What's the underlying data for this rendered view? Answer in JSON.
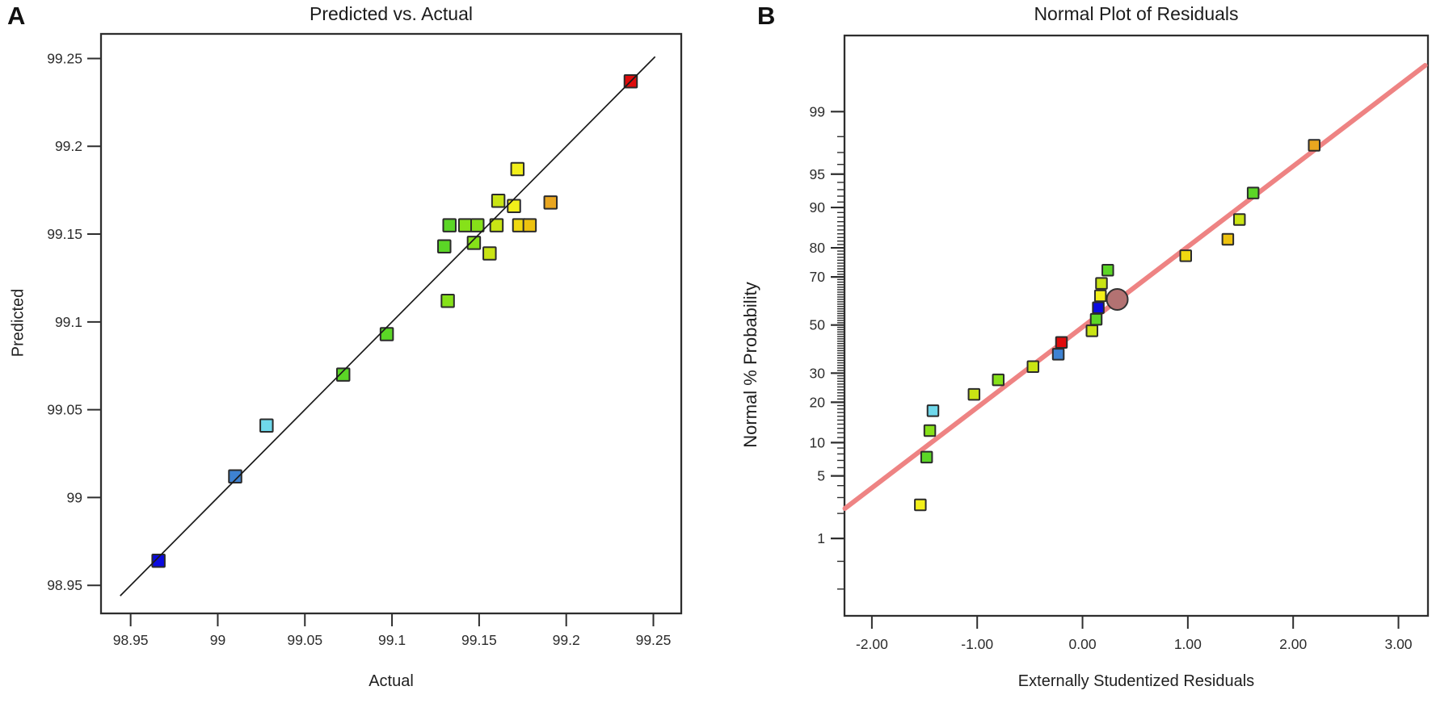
{
  "figure": {
    "background": "#ffffff",
    "panels": [
      {
        "label": "A"
      },
      {
        "label": "B"
      }
    ]
  },
  "palette": {
    "dark_blue": "#0a0ae0",
    "blue": "#3e82d2",
    "cyan": "#6fd8eb",
    "green": "#5bd626",
    "green_yellow": "#86e119",
    "yellow_green": "#c9e414",
    "yellow": "#f2ef1a",
    "yellow_deep": "#efd911",
    "amber": "#edc20f",
    "orange": "#e9a61f",
    "red": "#df0b0b",
    "marker_stroke": "#2b2b2b",
    "axis_color": "#2e2e2e",
    "fit_line_a": "#1a1a1a",
    "fit_line_b": "#ee8383",
    "overlap_circle": "#b37272"
  },
  "chart_data": [
    {
      "type": "scatter",
      "panel": "A",
      "title": "Predicted vs. Actual",
      "xlabel": "Actual",
      "ylabel": "Predicted",
      "marker": "square",
      "grid": false,
      "xlim": [
        98.933,
        99.266
      ],
      "ylim": [
        98.934,
        99.264
      ],
      "x_ticks": [
        98.95,
        99,
        99.05,
        99.1,
        99.15,
        99.2,
        99.25
      ],
      "x_tick_labels": [
        "98.95",
        "99",
        "99.05",
        "99.1",
        "99.15",
        "99.2",
        "99.25"
      ],
      "y_ticks": [
        98.95,
        99,
        99.05,
        99.1,
        99.15,
        99.2,
        99.25
      ],
      "y_tick_labels": [
        "98.95",
        "99",
        "99.05",
        "99.1",
        "99.15",
        "99.2",
        "99.25"
      ],
      "identity_line": {
        "x1": 98.944,
        "y1": 98.944,
        "x2": 99.251,
        "y2": 99.251,
        "color": "fit_line_a"
      },
      "points": [
        {
          "x": 98.966,
          "y": 98.964,
          "color": "dark_blue"
        },
        {
          "x": 99.01,
          "y": 99.012,
          "color": "blue"
        },
        {
          "x": 99.028,
          "y": 99.041,
          "color": "cyan"
        },
        {
          "x": 99.072,
          "y": 99.07,
          "color": "green"
        },
        {
          "x": 99.097,
          "y": 99.093,
          "color": "green"
        },
        {
          "x": 99.132,
          "y": 99.112,
          "color": "green_yellow"
        },
        {
          "x": 99.13,
          "y": 99.143,
          "color": "green"
        },
        {
          "x": 99.147,
          "y": 99.145,
          "color": "green_yellow"
        },
        {
          "x": 99.156,
          "y": 99.139,
          "color": "yellow_green"
        },
        {
          "x": 99.133,
          "y": 99.155,
          "color": "green"
        },
        {
          "x": 99.142,
          "y": 99.155,
          "color": "green_yellow"
        },
        {
          "x": 99.149,
          "y": 99.155,
          "color": "green_yellow"
        },
        {
          "x": 99.16,
          "y": 99.155,
          "color": "yellow_green"
        },
        {
          "x": 99.173,
          "y": 99.155,
          "color": "yellow_deep"
        },
        {
          "x": 99.179,
          "y": 99.155,
          "color": "amber"
        },
        {
          "x": 99.161,
          "y": 99.169,
          "color": "yellow_green"
        },
        {
          "x": 99.17,
          "y": 99.166,
          "color": "yellow"
        },
        {
          "x": 99.191,
          "y": 99.168,
          "color": "orange"
        },
        {
          "x": 99.172,
          "y": 99.187,
          "color": "yellow"
        },
        {
          "x": 99.237,
          "y": 99.237,
          "color": "red"
        }
      ]
    },
    {
      "type": "scatter_normal_probability",
      "panel": "B",
      "title": "Normal Plot of Residuals",
      "xlabel": "Externally Studentized Residuals",
      "ylabel": "Normal % Probability",
      "marker": "square",
      "grid": false,
      "xlim": [
        -2.26,
        3.28
      ],
      "zlim": [
        -3.17,
        3.156
      ],
      "x_ticks": [
        -2,
        -1,
        0,
        1,
        2,
        3
      ],
      "x_tick_labels": [
        "-2.00",
        "-1.00",
        "0.00",
        "1.00",
        "2.00",
        "3.00"
      ],
      "y_major_ticks": [
        99,
        95,
        90,
        80,
        70,
        50,
        30,
        20,
        10,
        5,
        1
      ],
      "y_tick_labels": [
        "99",
        "95",
        "90",
        "80",
        "70",
        "50",
        "30",
        "20",
        "10",
        "5",
        "1"
      ],
      "y_minor_ticks": {
        "start": 1,
        "end": 99,
        "step": 1,
        "extra": [
          0.5,
          0.2
        ]
      },
      "fit_line": {
        "x1": -2.256,
        "z1": -2.0,
        "x2": 3.254,
        "z2": 2.83,
        "color": "fit_line_b"
      },
      "overlap_circle": {
        "x": 0.33,
        "probability": 61,
        "color": "overlap_circle"
      },
      "points": [
        {
          "x": -1.54,
          "probability": 2.5,
          "color": "yellow"
        },
        {
          "x": -1.48,
          "probability": 7.5,
          "color": "green"
        },
        {
          "x": -1.45,
          "probability": 12.5,
          "color": "green_yellow"
        },
        {
          "x": -1.42,
          "probability": 17.5,
          "color": "cyan"
        },
        {
          "x": -1.03,
          "probability": 22.5,
          "color": "yellow_green"
        },
        {
          "x": -0.8,
          "probability": 27.5,
          "color": "green_yellow"
        },
        {
          "x": -0.47,
          "probability": 32.5,
          "color": "yellow_green"
        },
        {
          "x": -0.23,
          "probability": 37.5,
          "color": "blue"
        },
        {
          "x": -0.2,
          "probability": 42.5,
          "color": "red"
        },
        {
          "x": 0.09,
          "probability": 47.5,
          "color": "yellow_green"
        },
        {
          "x": 0.13,
          "probability": 52.5,
          "color": "green"
        },
        {
          "x": 0.15,
          "probability": 57.5,
          "color": "dark_blue"
        },
        {
          "x": 0.17,
          "probability": 62.5,
          "color": "yellow"
        },
        {
          "x": 0.18,
          "probability": 67.5,
          "color": "yellow_green"
        },
        {
          "x": 0.24,
          "probability": 72.5,
          "color": "green"
        },
        {
          "x": 0.98,
          "probability": 77.5,
          "color": "yellow_deep"
        },
        {
          "x": 1.38,
          "probability": 82.5,
          "color": "amber"
        },
        {
          "x": 1.49,
          "probability": 87.5,
          "color": "yellow_green"
        },
        {
          "x": 1.62,
          "probability": 92.5,
          "color": "green"
        },
        {
          "x": 2.2,
          "probability": 97.5,
          "color": "orange"
        }
      ]
    }
  ]
}
